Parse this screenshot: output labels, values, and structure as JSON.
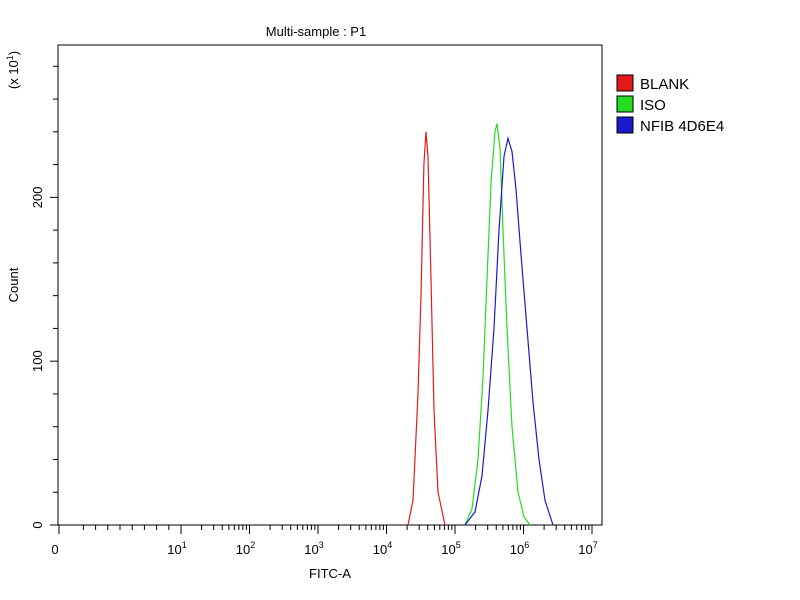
{
  "chart_data": {
    "type": "line",
    "title": "Multi-sample : P1",
    "xlabel": "FITC-A",
    "ylabel": "Count",
    "y_multiplier": "(x 10",
    "y_multiplier_exp": "1",
    "y_multiplier_close": ")",
    "x_scale": "log (biexponential, starts at 0)",
    "xlim": [
      0,
      10000000
    ],
    "ylim": [
      0,
      293
    ],
    "grid": false,
    "legend_position": "right",
    "x_ticks": [
      {
        "base": "0",
        "exp": "",
        "value": 0
      },
      {
        "base": "10",
        "exp": "1",
        "value": 10
      },
      {
        "base": "10",
        "exp": "2",
        "value": 100
      },
      {
        "base": "10",
        "exp": "3",
        "value": 1000
      },
      {
        "base": "10",
        "exp": "4",
        "value": 10000
      },
      {
        "base": "10",
        "exp": "5",
        "value": 100000
      },
      {
        "base": "10",
        "exp": "6",
        "value": 1000000
      },
      {
        "base": "10",
        "exp": "7",
        "value": 10000000
      }
    ],
    "y_ticks": [
      {
        "label": "0",
        "value": 0
      },
      {
        "label": "100",
        "value": 100
      },
      {
        "label": "200",
        "value": 200
      }
    ],
    "series": [
      {
        "name": "BLANK",
        "color": "#e41a1a",
        "x": [
          20600,
          24400,
          28800,
          31900,
          35200,
          37700,
          40400,
          44700,
          49300,
          56500,
          71400
        ],
        "y": [
          0,
          15,
          80,
          140,
          220,
          240,
          225,
          150,
          70,
          20,
          0
        ]
      },
      {
        "name": "ISO",
        "color": "#22dd22",
        "x": [
          140000,
          177000,
          217000,
          256000,
          293000,
          336000,
          384000,
          410000,
          454000,
          502000,
          574000,
          679000,
          832000,
          1016000,
          1245000
        ],
        "y": [
          0,
          10,
          40,
          90,
          150,
          210,
          240,
          245,
          230,
          180,
          120,
          60,
          20,
          5,
          0
        ]
      },
      {
        "name": "NFIB 4D6E4",
        "color": "#1a1acc",
        "x": [
          140000,
          196000,
          248000,
          303000,
          371000,
          439000,
          519000,
          594000,
          679000,
          778000,
          920000,
          1125000,
          1377000,
          1683000,
          2061000,
          2698000
        ],
        "y": [
          0,
          8,
          30,
          70,
          120,
          180,
          225,
          236,
          228,
          205,
          165,
          120,
          75,
          40,
          15,
          0
        ]
      }
    ]
  }
}
